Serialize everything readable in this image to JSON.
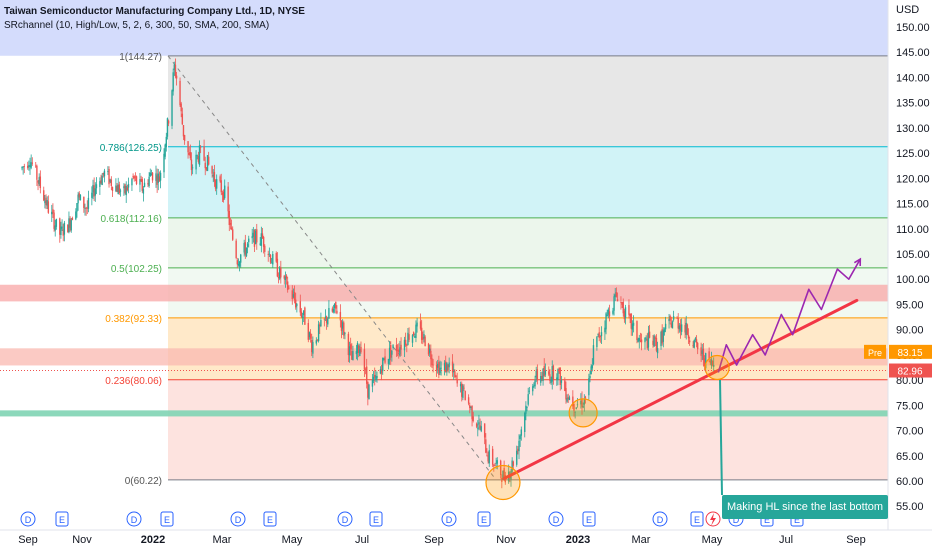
{
  "header": {
    "title": "Taiwan Semiconductor Manufacturing Company Ltd., 1D, NYSE",
    "indicator": "SRchannel (10, High/Low, 5, 2, 6, 300, 50, SMA, 200, SMA)"
  },
  "price_axis": {
    "currency": "USD",
    "ticks": [
      "150.00",
      "145.00",
      "140.00",
      "135.00",
      "130.00",
      "125.00",
      "120.00",
      "115.00",
      "110.00",
      "105.00",
      "100.00",
      "95.00",
      "90.00",
      "85.00",
      "80.00",
      "75.00",
      "70.00",
      "65.00",
      "60.00",
      "55.00"
    ]
  },
  "time_axis": {
    "labels": [
      "Sep",
      "Nov",
      "2022",
      "Mar",
      "May",
      "Jul",
      "Sep",
      "Nov",
      "2023",
      "Mar",
      "May",
      "Jul",
      "Sep"
    ]
  },
  "badges": {
    "pre_label": "Pre",
    "pre_price": "83.15",
    "last_price": "82.96"
  },
  "fib_labels": [
    "1(144.27)",
    "0.786(126.25)",
    "0.618(112.16)",
    "0.5(102.25)",
    "0.382(92.33)",
    "0.236(80.06)",
    "0(60.22)"
  ],
  "annotation": {
    "text": "Making HL since the last bottom"
  },
  "event_markers": [
    "D",
    "E",
    "D",
    "E",
    "D",
    "E",
    "D",
    "E",
    "D",
    "E",
    "D",
    "E",
    "D",
    "E",
    "D",
    "E",
    "E"
  ],
  "colors": {
    "up": "#26a69a",
    "down": "#ef5350",
    "trendline": "#f23645",
    "projection": "#9c27b0",
    "circle": "#ff9800",
    "callout": "#26a69a"
  },
  "chart_data": {
    "type": "candlestick",
    "title": "Taiwan Semiconductor Manufacturing Company Ltd., 1D, NYSE",
    "ylabel": "USD",
    "ylim": [
      52,
      155
    ],
    "x_range": [
      "2021-09",
      "2023-09"
    ],
    "fibonacci": [
      {
        "level": 1,
        "price": 144.27
      },
      {
        "level": 0.786,
        "price": 126.25
      },
      {
        "level": 0.618,
        "price": 112.16
      },
      {
        "level": 0.5,
        "price": 102.25
      },
      {
        "level": 0.382,
        "price": 92.33
      },
      {
        "level": 0.236,
        "price": 80.06
      },
      {
        "level": 0,
        "price": 60.22
      }
    ],
    "close_path": [
      [
        "2021-09-01",
        122
      ],
      [
        "2021-09-08",
        124
      ],
      [
        "2021-09-16",
        119
      ],
      [
        "2021-09-24",
        114
      ],
      [
        "2021-10-04",
        109
      ],
      [
        "2021-10-12",
        111
      ],
      [
        "2021-10-20",
        116
      ],
      [
        "2021-10-28",
        114
      ],
      [
        "2021-11-05",
        119
      ],
      [
        "2021-11-12",
        121
      ],
      [
        "2021-11-19",
        119
      ],
      [
        "2021-11-29",
        117
      ],
      [
        "2021-12-07",
        120
      ],
      [
        "2021-12-15",
        118
      ],
      [
        "2021-12-23",
        121
      ],
      [
        "2021-12-30",
        120
      ],
      [
        "2022-01-07",
        132
      ],
      [
        "2022-01-12",
        142
      ],
      [
        "2022-01-14",
        140
      ],
      [
        "2022-01-20",
        129
      ],
      [
        "2022-01-27",
        122
      ],
      [
        "2022-02-03",
        125
      ],
      [
        "2022-02-10",
        123
      ],
      [
        "2022-02-18",
        119
      ],
      [
        "2022-02-25",
        117
      ],
      [
        "2022-03-02",
        110
      ],
      [
        "2022-03-08",
        104
      ],
      [
        "2022-03-15",
        106
      ],
      [
        "2022-03-22",
        108
      ],
      [
        "2022-03-30",
        108
      ],
      [
        "2022-04-07",
        104
      ],
      [
        "2022-04-14",
        101
      ],
      [
        "2022-04-22",
        98
      ],
      [
        "2022-04-29",
        95
      ],
      [
        "2022-05-06",
        92
      ],
      [
        "2022-05-12",
        87
      ],
      [
        "2022-05-19",
        90
      ],
      [
        "2022-05-27",
        93
      ],
      [
        "2022-06-03",
        94
      ],
      [
        "2022-06-10",
        89
      ],
      [
        "2022-06-16",
        84
      ],
      [
        "2022-06-24",
        87
      ],
      [
        "2022-06-30",
        78
      ],
      [
        "2022-07-07",
        80
      ],
      [
        "2022-07-14",
        84
      ],
      [
        "2022-07-21",
        86
      ],
      [
        "2022-07-29",
        87
      ],
      [
        "2022-08-05",
        89
      ],
      [
        "2022-08-12",
        90
      ],
      [
        "2022-08-19",
        88
      ],
      [
        "2022-08-26",
        84
      ],
      [
        "2022-09-02",
        82
      ],
      [
        "2022-09-09",
        83
      ],
      [
        "2022-09-16",
        79
      ],
      [
        "2022-09-23",
        77
      ],
      [
        "2022-09-30",
        73
      ],
      [
        "2022-10-07",
        70
      ],
      [
        "2022-10-13",
        65
      ],
      [
        "2022-10-20",
        63
      ],
      [
        "2022-10-26",
        61
      ],
      [
        "2022-11-01",
        62
      ],
      [
        "2022-11-07",
        66
      ],
      [
        "2022-11-14",
        74
      ],
      [
        "2022-11-21",
        80
      ],
      [
        "2022-11-28",
        81
      ],
      [
        "2022-12-05",
        81
      ],
      [
        "2022-12-12",
        82
      ],
      [
        "2022-12-19",
        78
      ],
      [
        "2022-12-28",
        75
      ],
      [
        "2023-01-05",
        76
      ],
      [
        "2023-01-10",
        80
      ],
      [
        "2023-01-13",
        86
      ],
      [
        "2023-01-20",
        90
      ],
      [
        "2023-01-27",
        94
      ],
      [
        "2023-02-03",
        97
      ],
      [
        "2023-02-10",
        93
      ],
      [
        "2023-02-17",
        90
      ],
      [
        "2023-02-24",
        87
      ],
      [
        "2023-03-03",
        88
      ],
      [
        "2023-03-10",
        87
      ],
      [
        "2023-03-17",
        90
      ],
      [
        "2023-03-24",
        92
      ],
      [
        "2023-03-31",
        91
      ],
      [
        "2023-04-07",
        89
      ],
      [
        "2023-04-14",
        86
      ],
      [
        "2023-04-21",
        84
      ],
      [
        "2023-04-28",
        83
      ]
    ],
    "trendline": [
      [
        "2022-10-27",
        60.5
      ],
      [
        "2023-08-31",
        95.8
      ]
    ],
    "projection": [
      [
        "2023-05-02",
        81.5
      ],
      [
        "2023-05-09",
        87
      ],
      [
        "2023-05-18",
        83
      ],
      [
        "2023-06-01",
        89
      ],
      [
        "2023-06-12",
        85
      ],
      [
        "2023-06-26",
        93
      ],
      [
        "2023-07-06",
        89
      ],
      [
        "2023-07-20",
        98
      ],
      [
        "2023-07-31",
        94
      ],
      [
        "2023-08-14",
        102
      ],
      [
        "2023-08-24",
        100
      ],
      [
        "2023-09-03",
        104
      ]
    ],
    "marked_lows": [
      [
        "2022-10-26",
        60.5
      ],
      [
        "2023-01-04",
        73.5
      ],
      [
        "2023-05-01",
        82.5
      ]
    ]
  }
}
